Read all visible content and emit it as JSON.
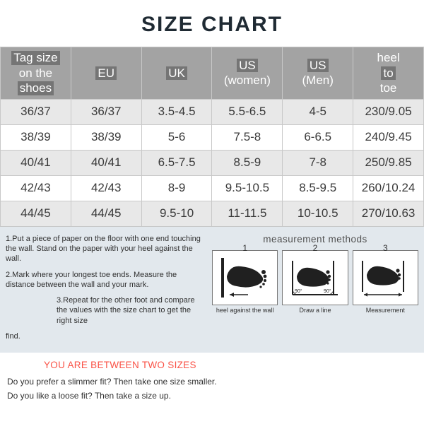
{
  "title": "SIZE CHART",
  "title_fontsize": 30,
  "title_color": "#1f2a33",
  "table": {
    "header_bg": "#a3a3a3",
    "header_text_color": "#ffffff",
    "highlight_bg": "rgba(80,80,80,0.55)",
    "row_alt_bg": "#e8e8e8",
    "row_bg": "#ffffff",
    "border_color": "#c8c8c8",
    "columns": [
      {
        "lines": [
          "Tag size",
          "on the",
          "shoes"
        ],
        "highlight": [
          true,
          false,
          true
        ]
      },
      {
        "lines": [
          "EU"
        ],
        "highlight": [
          true
        ]
      },
      {
        "lines": [
          "UK"
        ],
        "highlight": [
          true
        ]
      },
      {
        "lines": [
          "US",
          "(women)"
        ],
        "highlight": [
          true,
          false
        ]
      },
      {
        "lines": [
          "US",
          "(Men)"
        ],
        "highlight": [
          true,
          false
        ]
      },
      {
        "lines": [
          "heel",
          "to",
          "toe"
        ],
        "highlight": [
          false,
          true,
          false
        ]
      }
    ],
    "rows": [
      [
        "36/37",
        "36/37",
        "3.5-4.5",
        "5.5-6.5",
        "4-5",
        "230/9.05"
      ],
      [
        "38/39",
        "38/39",
        "5-6",
        "7.5-8",
        "6-6.5",
        "240/9.45"
      ],
      [
        "40/41",
        "40/41",
        "6.5-7.5",
        "8.5-9",
        "7-8",
        "250/9.85"
      ],
      [
        "42/43",
        "42/43",
        "8-9",
        "9.5-10.5",
        "8.5-9.5",
        "260/10.24"
      ],
      [
        "44/45",
        "44/45",
        "9.5-10",
        "11-11.5",
        "10-10.5",
        "270/10.63"
      ]
    ]
  },
  "instructions": {
    "bg": "#e2e8ed",
    "step1": "1.Put a piece of paper on the floor with one end touching the wall. Stand on the paper with your heel against the wall.",
    "step2": "2.Mark where your longest toe ends. Measure the distance between the wall and your mark.",
    "step3": "3.Repeat for the other foot and compare the values with the size chart to get the right size",
    "find": "find."
  },
  "methods": {
    "title": "measurement methods",
    "items": [
      {
        "num": "1",
        "caption": "heel against the wall"
      },
      {
        "num": "2",
        "caption": "Draw a line"
      },
      {
        "num": "3",
        "caption": "Measurement"
      }
    ],
    "angle_label": "90°"
  },
  "between": {
    "text": "YOU ARE BETWEEN TWO SIZES",
    "color": "#fa5246"
  },
  "fit": {
    "slim": "Do you prefer a slimmer fit? Then take one size smaller.",
    "loose": "Do you like a loose fit? Then take a size up."
  }
}
